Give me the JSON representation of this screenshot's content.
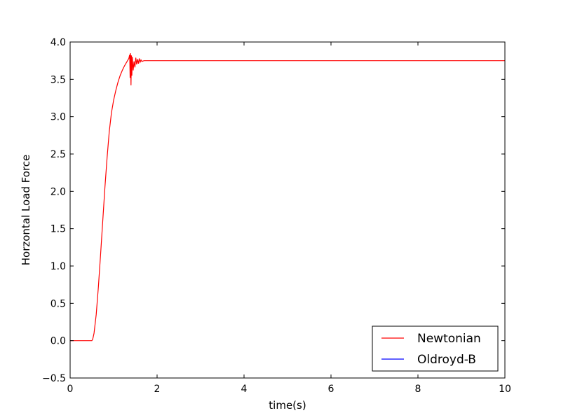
{
  "chart_data": {
    "type": "line",
    "title": "",
    "xlabel": "time(s)",
    "ylabel": "Horzontal Load Force",
    "xlim": [
      0,
      10
    ],
    "ylim": [
      -0.5,
      4.0
    ],
    "xticks": [
      0,
      2,
      4,
      6,
      8,
      10
    ],
    "xtick_labels": [
      "0",
      "2",
      "4",
      "6",
      "8",
      "10"
    ],
    "yticks": [
      -0.5,
      0.0,
      0.5,
      1.0,
      1.5,
      2.0,
      2.5,
      3.0,
      3.5,
      4.0
    ],
    "ytick_labels": [
      "−0.5",
      "0.0",
      "0.5",
      "1.0",
      "1.5",
      "2.0",
      "2.5",
      "3.0",
      "3.5",
      "4.0"
    ],
    "grid": false,
    "legend_position": "lower-right",
    "series": [
      {
        "name": "Newtonian",
        "color": "#ff0000",
        "x": [
          0.0,
          0.3,
          0.5,
          0.52,
          0.55,
          0.6,
          0.65,
          0.7,
          0.75,
          0.8,
          0.85,
          0.9,
          0.95,
          1.0,
          1.05,
          1.1,
          1.15,
          1.2,
          1.25,
          1.3,
          1.35,
          1.37,
          1.38,
          1.39,
          1.4,
          1.41,
          1.42,
          1.43,
          1.45,
          1.47,
          1.49,
          1.51,
          1.53,
          1.55,
          1.57,
          1.59,
          1.61,
          1.63,
          1.65,
          1.7,
          1.8,
          2.0,
          3.0,
          4.0,
          5.0,
          6.0,
          7.0,
          8.0,
          9.0,
          10.0
        ],
        "y": [
          0.0,
          0.0,
          0.0,
          0.02,
          0.1,
          0.35,
          0.72,
          1.15,
          1.6,
          2.05,
          2.45,
          2.8,
          3.05,
          3.22,
          3.35,
          3.46,
          3.55,
          3.62,
          3.68,
          3.73,
          3.78,
          3.83,
          3.52,
          3.85,
          3.42,
          3.82,
          3.55,
          3.8,
          3.62,
          3.74,
          3.66,
          3.79,
          3.7,
          3.77,
          3.71,
          3.78,
          3.73,
          3.76,
          3.74,
          3.75,
          3.75,
          3.75,
          3.75,
          3.75,
          3.75,
          3.75,
          3.75,
          3.75,
          3.75,
          3.75
        ]
      },
      {
        "name": "Oldroyd-B",
        "color": "#0000ff",
        "x": [],
        "y": []
      }
    ]
  }
}
